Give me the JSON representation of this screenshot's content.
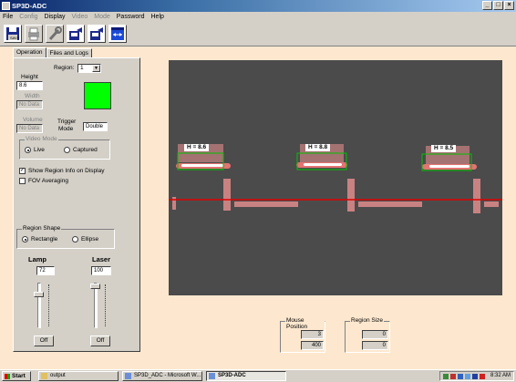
{
  "window": {
    "title": "SP3D-ADC",
    "controls": [
      "_",
      "□",
      "×"
    ]
  },
  "menu": {
    "items": [
      {
        "label": "File",
        "enabled": true
      },
      {
        "label": "Config",
        "enabled": false
      },
      {
        "label": "Display",
        "enabled": true
      },
      {
        "label": "Video",
        "enabled": false
      },
      {
        "label": "Mode",
        "enabled": false
      },
      {
        "label": "Password",
        "enabled": true
      },
      {
        "label": "Help",
        "enabled": true
      }
    ]
  },
  "toolbar": {
    "buttons": [
      {
        "icon": "save-disk-icon"
      },
      {
        "icon": "printer-icon"
      },
      {
        "icon": "wrench-icon"
      },
      {
        "icon": "export-icon"
      },
      {
        "icon": "import-icon"
      },
      {
        "icon": "window-arrows-icon"
      }
    ]
  },
  "tabs": [
    {
      "label": "Operation"
    },
    {
      "label": "Files and Logs"
    }
  ],
  "operation": {
    "region_label": "Region:",
    "region_value": "1",
    "height_label": "Height",
    "height_value": "8.6",
    "width_label": "Width",
    "width_value": "No Data",
    "volume_label": "Volume",
    "volume_value": "No Data",
    "trigger_mode_label_1": "Trigger",
    "trigger_mode_label_2": "Mode",
    "trigger_mode_value": "Double",
    "status_color": "#00ff00",
    "video_mode": {
      "title": "Video Mode",
      "live_label": "Live",
      "captured_label": "Captured",
      "selected": "Live"
    },
    "show_region_info": {
      "label": "Show Region Info on Display",
      "checked": true
    },
    "fov_averaging": {
      "label": "FOV Averaging",
      "checked": false
    },
    "region_shape": {
      "title": "Region Shape",
      "rectangle_label": "Rectangle",
      "ellipse_label": "Ellipse",
      "selected": "Rectangle"
    },
    "lamp": {
      "label": "Lamp",
      "value": "72",
      "button_label": "Off"
    },
    "laser": {
      "label": "Laser",
      "value": "100",
      "button_label": "Off"
    }
  },
  "display": {
    "background": "#4b4b4b",
    "laser_line_color": "#e00000",
    "region_box_color": "#00c000",
    "regions": [
      {
        "label": "H = 8.6"
      },
      {
        "label": "H = 8.8"
      },
      {
        "label": "H = 8.5"
      }
    ]
  },
  "mouse_position": {
    "title": "Mouse Position",
    "x": "3",
    "y": "400"
  },
  "region_size": {
    "title": "Region Size",
    "w": "0",
    "h": "0"
  },
  "taskbar": {
    "start_label": "Start",
    "tasks": [
      {
        "label": "output",
        "active": false
      },
      {
        "label": "SP3D_ADC - Microsoft W...",
        "active": false
      },
      {
        "label": "SP3D-ADC",
        "active": true
      }
    ],
    "clock": "8:32 AM"
  }
}
